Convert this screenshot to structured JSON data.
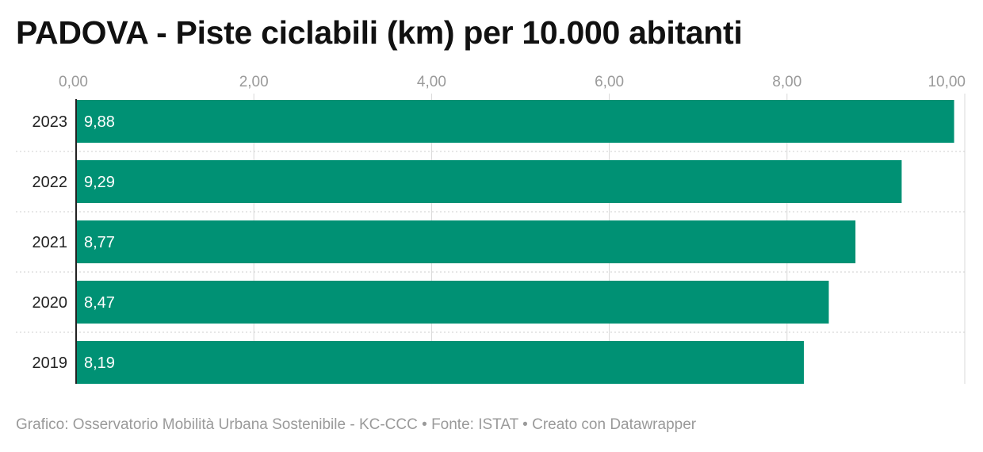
{
  "title": "PADOVA - Piste ciclabili (km) per 10.000 abitanti",
  "footer": {
    "credit": "Grafico: Osservatorio Mobilità Urbana Sostenibile - KC-CCC",
    "sep1": "•",
    "source": "Fonte: ISTAT",
    "sep2": "•",
    "tool": "Creato con Datawrapper"
  },
  "colors": {
    "bar": "#009174",
    "grid": "#d9d9d9",
    "separator": "#cfcfcf",
    "baseline": "#222222",
    "tick_text": "#9a9a9a"
  },
  "chart_data": {
    "type": "bar",
    "orientation": "horizontal",
    "categories": [
      "2023",
      "2022",
      "2021",
      "2020",
      "2019"
    ],
    "values": [
      9.88,
      9.29,
      8.77,
      8.47,
      8.19
    ],
    "value_labels": [
      "9,88",
      "9,29",
      "8,77",
      "8,47",
      "8,19"
    ],
    "xlim": [
      0,
      10
    ],
    "x_ticks": [
      0,
      2,
      4,
      6,
      8,
      10
    ],
    "x_tick_labels": [
      "0,00",
      "2,00",
      "4,00",
      "6,00",
      "8,00",
      "10,00"
    ],
    "xlabel": "",
    "ylabel": "",
    "grid": true,
    "tick_position": "top"
  }
}
